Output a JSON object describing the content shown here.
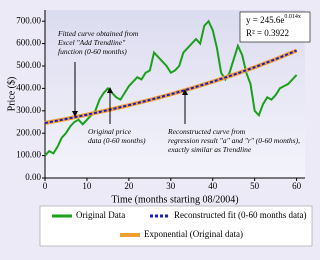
{
  "chart_data": {
    "type": "line",
    "y_label": "Price ($)",
    "x_label": "Time (months starting 08/2004)",
    "equation": {
      "base": "y = 245.6e",
      "exponent": "0.014x"
    },
    "r_squared": "R² = 0.3922",
    "annotations": [
      {
        "lines": [
          "Fitted curve obtained from",
          "Excel \"Add Trendline\"",
          "function (0-60 months)"
        ]
      },
      {
        "lines": [
          "Original price",
          "data (0-60 months)"
        ]
      },
      {
        "lines": [
          "Reconstructed curve from",
          "regression result \"a\" and \"r\" (0-60 months),",
          "exactly similar as Trendline"
        ]
      }
    ],
    "xlim": [
      0,
      62
    ],
    "xticks": [
      0,
      10,
      20,
      30,
      40,
      50,
      60
    ],
    "ylim": [
      0,
      750
    ],
    "yticks": [
      {
        "value": 0,
        "label": "0.00"
      },
      {
        "value": 100,
        "label": "100.00"
      },
      {
        "value": 200,
        "label": "200.00"
      },
      {
        "value": 300,
        "label": "300.00"
      },
      {
        "value": 400,
        "label": "400.00"
      },
      {
        "value": 500,
        "label": "500.00"
      },
      {
        "value": 600,
        "label": "600.00"
      },
      {
        "value": 700,
        "label": "700.00"
      }
    ],
    "series": [
      {
        "name": "Original Data",
        "color": "#1aa01a",
        "x": [
          0,
          1,
          2,
          3,
          4,
          5,
          6,
          7,
          8,
          9,
          10,
          11,
          12,
          13,
          14,
          15,
          16,
          17,
          18,
          19,
          20,
          21,
          22,
          23,
          24,
          25,
          26,
          27,
          28,
          29,
          30,
          31,
          32,
          33,
          34,
          35,
          36,
          37,
          38,
          39,
          40,
          41,
          42,
          43,
          44,
          45,
          46,
          47,
          48,
          49,
          50,
          51,
          52,
          53,
          54,
          55,
          56,
          57,
          58,
          59,
          60
        ],
        "values": [
          100,
          120,
          110,
          140,
          180,
          200,
          230,
          250,
          260,
          240,
          260,
          280,
          300,
          350,
          380,
          400,
          380,
          360,
          350,
          380,
          410,
          430,
          450,
          440,
          470,
          480,
          560,
          540,
          520,
          500,
          470,
          480,
          500,
          560,
          580,
          600,
          620,
          600,
          680,
          700,
          660,
          580,
          470,
          440,
          470,
          530,
          590,
          550,
          470,
          420,
          300,
          280,
          330,
          360,
          350,
          370,
          400,
          410,
          420,
          440,
          460
        ]
      },
      {
        "name": "Reconstructed fit (0-60 months data)",
        "color": "#1a1acc",
        "x": [
          0,
          5,
          10,
          15,
          20,
          25,
          30,
          35,
          40,
          45,
          50,
          55,
          60
        ],
        "values": [
          245.6,
          263.4,
          282.5,
          303.0,
          325.0,
          348.5,
          373.8,
          400.9,
          430.0,
          461.1,
          494.6,
          530.4,
          569.0
        ]
      },
      {
        "name": "Exponential (Original data)",
        "color": "#f0a030",
        "x": [
          0,
          5,
          10,
          15,
          20,
          25,
          30,
          35,
          40,
          45,
          50,
          55,
          60
        ],
        "values": [
          245.6,
          263.4,
          282.5,
          303.0,
          325.0,
          348.5,
          373.8,
          400.9,
          430.0,
          461.1,
          494.6,
          530.4,
          569.0
        ]
      }
    ]
  }
}
